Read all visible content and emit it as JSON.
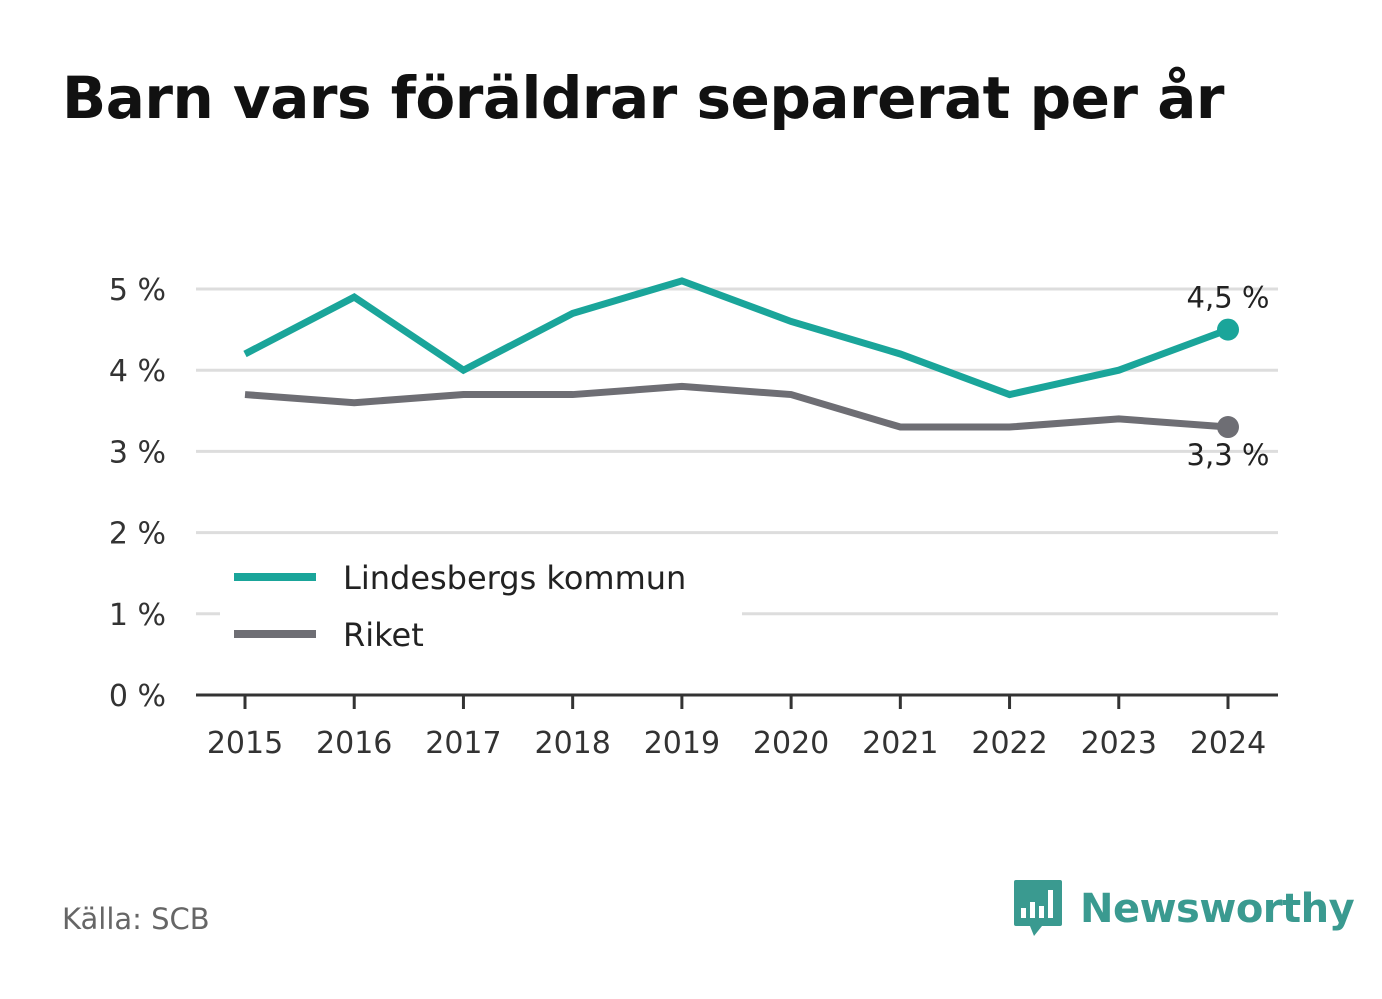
{
  "title": "Barn vars föräldrar separerat per år",
  "source": "Källa: SCB",
  "brand": {
    "name": "Newsworthy",
    "color": "#3a9a90",
    "icon": "bar-chart-speech-bubble-icon"
  },
  "chart_data": {
    "type": "line",
    "title": "Barn vars föräldrar separerat per år",
    "x": [
      "2015",
      "2016",
      "2017",
      "2018",
      "2019",
      "2020",
      "2021",
      "2022",
      "2023",
      "2024"
    ],
    "ylim": [
      0,
      5
    ],
    "yticks": [
      0,
      1,
      2,
      3,
      4,
      5
    ],
    "ytick_labels": [
      "0 %",
      "1 %",
      "2 %",
      "3 %",
      "4 %",
      "5 %"
    ],
    "grid": true,
    "legend_position": "bottom-left",
    "series": [
      {
        "name": "Lindesbergs kommun",
        "color": "#1aa59a",
        "values": [
          4.2,
          4.9,
          4.0,
          4.7,
          5.1,
          4.6,
          4.2,
          3.7,
          4.0,
          4.5
        ],
        "end_label": "4,5 %"
      },
      {
        "name": "Riket",
        "color": "#6e6e74",
        "values": [
          3.7,
          3.6,
          3.7,
          3.7,
          3.8,
          3.7,
          3.3,
          3.3,
          3.4,
          3.3
        ],
        "end_label": "3,3 %"
      }
    ]
  }
}
